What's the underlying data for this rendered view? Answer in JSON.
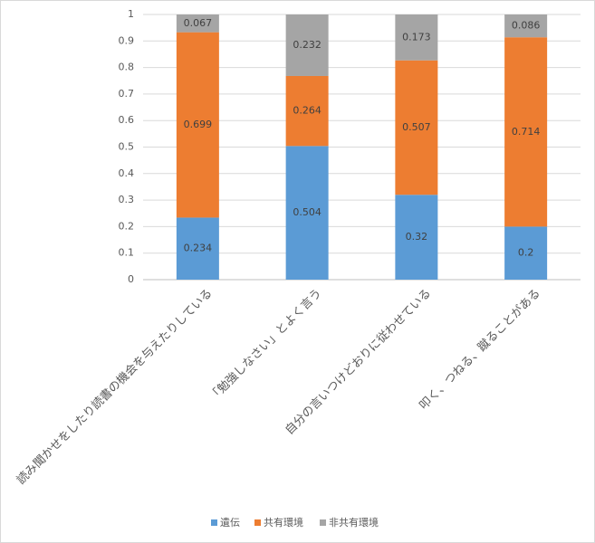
{
  "chart_data": {
    "type": "stacked-bar",
    "categories": [
      "読み聞かせをしたり読書の機会を与えたりしている",
      "「勉強しなさい」とよく言う",
      "自分の言いつけどおりに従わせている",
      "叩く、つねる、蹴ることがある"
    ],
    "series": [
      {
        "name": "遺伝",
        "color": "#5b9bd5",
        "values": [
          0.234,
          0.504,
          0.32,
          0.2
        ]
      },
      {
        "name": "共有環境",
        "color": "#ed7d31",
        "values": [
          0.699,
          0.264,
          0.507,
          0.714
        ]
      },
      {
        "name": "非共有環境",
        "color": "#a5a5a5",
        "values": [
          0.067,
          0.232,
          0.173,
          0.086
        ]
      }
    ],
    "ylim": [
      0,
      1
    ],
    "yticks": [
      0,
      0.1,
      0.2,
      0.3,
      0.4,
      0.5,
      0.6,
      0.7,
      0.8,
      0.9,
      1
    ],
    "grid": true,
    "legend": "bottom"
  }
}
